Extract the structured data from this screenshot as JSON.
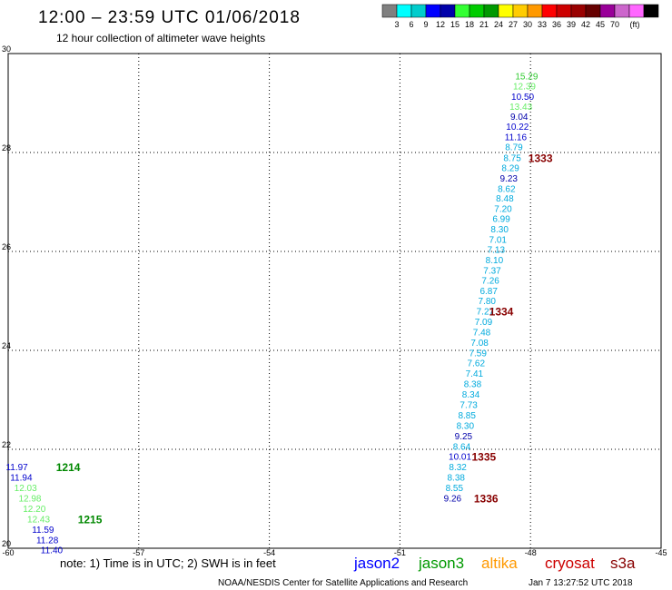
{
  "header": {
    "title": "12:00 – 23:59 UTC 01/06/2018",
    "subtitle": "12 hour collection of altimeter wave heights"
  },
  "colorbar": {
    "colors": [
      "#808080",
      "#00ffff",
      "#00cccc",
      "#0000ff",
      "#0000aa",
      "#33ff33",
      "#00cc00",
      "#009900",
      "#ffff00",
      "#ffcc00",
      "#ff9900",
      "#ff0000",
      "#cc0000",
      "#990000",
      "#660000",
      "#990099",
      "#cc66cc",
      "#ff66ff",
      "#000000"
    ],
    "labels": [
      "3",
      "6",
      "9",
      "12",
      "15",
      "18",
      "21",
      "24",
      "27",
      "30",
      "33",
      "36",
      "39",
      "42",
      "45",
      "70"
    ],
    "unit": "(ft)"
  },
  "chart_data": {
    "type": "scatter",
    "title": "12 hour collection of altimeter wave heights",
    "xlim": [
      -60,
      -45
    ],
    "ylim": [
      20,
      30
    ],
    "x_ticks": [
      "-60",
      "-57",
      "-54",
      "-51",
      "-48",
      "-45"
    ],
    "y_ticks": [
      "30",
      "28",
      "26",
      "24",
      "22",
      "20"
    ],
    "grid": true,
    "points": [
      {
        "x": -48.09,
        "y": 29.53,
        "v": "15.29",
        "c": "#33cc33"
      },
      {
        "x": -48.14,
        "y": 29.33,
        "v": "12.39",
        "c": "#66ee66"
      },
      {
        "x": -48.18,
        "y": 29.12,
        "v": "10.50",
        "c": "#0000cc"
      },
      {
        "x": -48.22,
        "y": 28.92,
        "v": "13.43",
        "c": "#66ee66"
      },
      {
        "x": -48.26,
        "y": 28.72,
        "v": "9.04",
        "c": "#0000aa"
      },
      {
        "x": -48.3,
        "y": 28.51,
        "v": "10.22",
        "c": "#0000cc"
      },
      {
        "x": -48.34,
        "y": 28.3,
        "v": "11.16",
        "c": "#0000cc"
      },
      {
        "x": -48.38,
        "y": 28.1,
        "v": "8.79",
        "c": "#00aadd"
      },
      {
        "x": -48.42,
        "y": 27.88,
        "v": "8.75",
        "c": "#00aadd"
      },
      {
        "x": -48.46,
        "y": 27.68,
        "v": "8.29",
        "c": "#00aadd"
      },
      {
        "x": -48.5,
        "y": 27.47,
        "v": "9.23",
        "c": "#0000aa"
      },
      {
        "x": -48.55,
        "y": 27.26,
        "v": "8.62",
        "c": "#00aadd"
      },
      {
        "x": -48.59,
        "y": 27.06,
        "v": "8.48",
        "c": "#00aadd"
      },
      {
        "x": -48.63,
        "y": 26.85,
        "v": "7.20",
        "c": "#00aadd"
      },
      {
        "x": -48.67,
        "y": 26.65,
        "v": "6.99",
        "c": "#00aadd"
      },
      {
        "x": -48.71,
        "y": 26.44,
        "v": "8.30",
        "c": "#00aadd"
      },
      {
        "x": -48.75,
        "y": 26.23,
        "v": "7.01",
        "c": "#00aadd"
      },
      {
        "x": -48.79,
        "y": 26.03,
        "v": "7.13",
        "c": "#00aadd"
      },
      {
        "x": -48.83,
        "y": 25.82,
        "v": "8.10",
        "c": "#00aadd"
      },
      {
        "x": -48.88,
        "y": 25.61,
        "v": "7.37",
        "c": "#00aadd"
      },
      {
        "x": -48.92,
        "y": 25.4,
        "v": "7.26",
        "c": "#00aadd"
      },
      {
        "x": -48.96,
        "y": 25.19,
        "v": "6.87",
        "c": "#00aadd"
      },
      {
        "x": -49.0,
        "y": 24.99,
        "v": "7.80",
        "c": "#00aadd"
      },
      {
        "x": -49.04,
        "y": 24.78,
        "v": "7.27",
        "c": "#00aadd"
      },
      {
        "x": -49.08,
        "y": 24.57,
        "v": "7.09",
        "c": "#00aadd"
      },
      {
        "x": -49.12,
        "y": 24.36,
        "v": "7.48",
        "c": "#00aadd"
      },
      {
        "x": -49.17,
        "y": 24.15,
        "v": "7.08",
        "c": "#00aadd"
      },
      {
        "x": -49.21,
        "y": 23.94,
        "v": "7.59",
        "c": "#00aadd"
      },
      {
        "x": -49.25,
        "y": 23.73,
        "v": "7.62",
        "c": "#00aadd"
      },
      {
        "x": -49.29,
        "y": 23.52,
        "v": "7.41",
        "c": "#00aadd"
      },
      {
        "x": -49.33,
        "y": 23.31,
        "v": "8.38",
        "c": "#00aadd"
      },
      {
        "x": -49.37,
        "y": 23.1,
        "v": "8.34",
        "c": "#00aadd"
      },
      {
        "x": -49.42,
        "y": 22.89,
        "v": "7.73",
        "c": "#00aadd"
      },
      {
        "x": -49.46,
        "y": 22.68,
        "v": "8.85",
        "c": "#00aadd"
      },
      {
        "x": -49.5,
        "y": 22.47,
        "v": "8.30",
        "c": "#00aadd"
      },
      {
        "x": -49.54,
        "y": 22.26,
        "v": "9.25",
        "c": "#0000aa"
      },
      {
        "x": -49.58,
        "y": 22.05,
        "v": "8.64",
        "c": "#00aadd"
      },
      {
        "x": -49.62,
        "y": 21.84,
        "v": "10.01",
        "c": "#0000cc"
      },
      {
        "x": -49.67,
        "y": 21.63,
        "v": "8.32",
        "c": "#00aadd"
      },
      {
        "x": -49.71,
        "y": 21.42,
        "v": "8.38",
        "c": "#00aadd"
      },
      {
        "x": -49.75,
        "y": 21.21,
        "v": "8.55",
        "c": "#00aadd"
      },
      {
        "x": -49.79,
        "y": 21.0,
        "v": "9.26",
        "c": "#0000aa"
      },
      {
        "x": -59.8,
        "y": 21.63,
        "v": "11.97",
        "c": "#0000cc"
      },
      {
        "x": -59.7,
        "y": 21.42,
        "v": "11.94",
        "c": "#0000cc"
      },
      {
        "x": -59.6,
        "y": 21.21,
        "v": "12.03",
        "c": "#66ee66"
      },
      {
        "x": -59.5,
        "y": 21.0,
        "v": "12.98",
        "c": "#66ee66"
      },
      {
        "x": -59.4,
        "y": 20.79,
        "v": "12.20",
        "c": "#66ee66"
      },
      {
        "x": -59.3,
        "y": 20.58,
        "v": "12.43",
        "c": "#66ee66"
      },
      {
        "x": -59.2,
        "y": 20.37,
        "v": "11.59",
        "c": "#0000cc"
      },
      {
        "x": -59.1,
        "y": 20.16,
        "v": "11.28",
        "c": "#0000cc"
      },
      {
        "x": -59.0,
        "y": 19.95,
        "v": "11.40",
        "c": "#0000cc"
      }
    ],
    "pass_labels": [
      {
        "text": "1333",
        "x": -48.05,
        "y": 27.88,
        "c": "#880000"
      },
      {
        "text": "1334",
        "x": -48.95,
        "y": 24.78,
        "c": "#880000"
      },
      {
        "text": "1335",
        "x": -49.35,
        "y": 21.84,
        "c": "#880000"
      },
      {
        "text": "1336",
        "x": -49.3,
        "y": 21.0,
        "c": "#880000"
      },
      {
        "text": "1214",
        "x": -58.9,
        "y": 21.63,
        "c": "#008800"
      },
      {
        "text": "1215",
        "x": -58.4,
        "y": 20.58,
        "c": "#008800"
      }
    ]
  },
  "footer": {
    "note": "note: 1) Time is in UTC; 2) SWH is in feet",
    "satellites": [
      {
        "name": "jason2",
        "color": "#0000ff"
      },
      {
        "name": "jason3",
        "color": "#009900"
      },
      {
        "name": "altika",
        "color": "#ff9900"
      },
      {
        "name": "cryosat",
        "color": "#cc0000"
      },
      {
        "name": "s3a",
        "color": "#880000"
      }
    ],
    "credit": "NOAA/NESDIS Center for Satellite Applications and Research",
    "timestamp": "Jan  7 13:27:52 UTC 2018"
  }
}
